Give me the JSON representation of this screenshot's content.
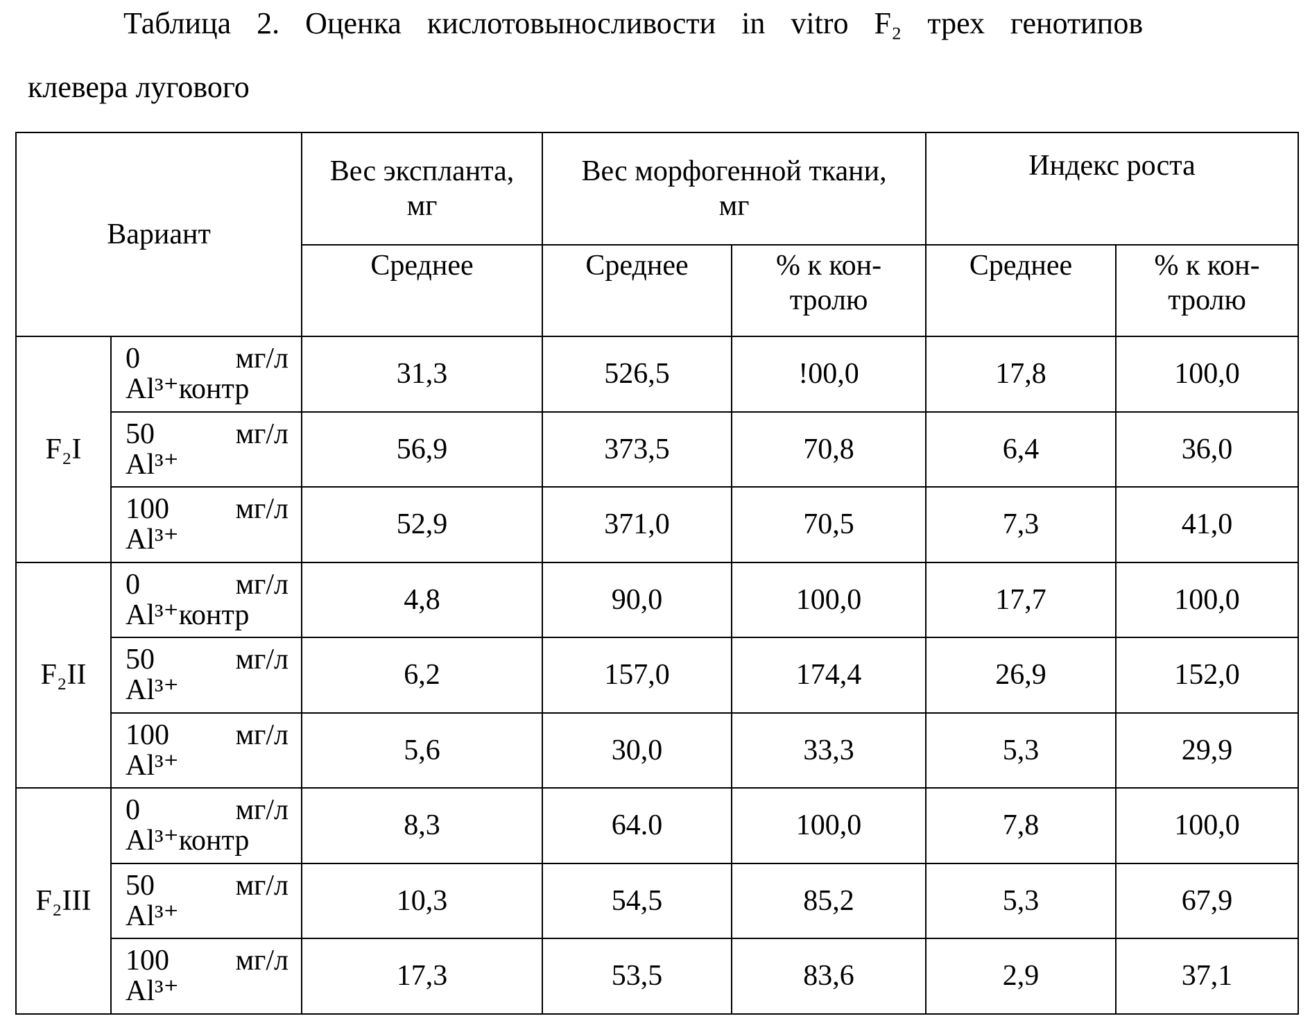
{
  "title": [
    "Таблица 2. Оценка кислотовыносливости in vitro F₂ трех генотипов",
    "клевера лугового"
  ],
  "table": {
    "header": {
      "variant": "Вариант",
      "groups": [
        [
          "Вес экспланта,",
          "мг"
        ],
        [
          "Вес морфогенной ткани,",
          "мг"
        ],
        [
          "Индекс роста"
        ]
      ],
      "sub": [
        [
          "Среднее"
        ],
        [
          "Среднее"
        ],
        [
          "% к кон-",
          "тролю"
        ],
        [
          "Среднее"
        ],
        [
          "% к кон-",
          "тролю"
        ]
      ]
    },
    "groups": [
      {
        "name": "F₂I",
        "rows": [
          {
            "dose": [
              "0 мг/л",
              "Al³⁺контр"
            ],
            "cells": [
              "31,3",
              "526,5",
              "!00,0",
              "17,8",
              "100,0"
            ]
          },
          {
            "dose": [
              "50 мг/л",
              "Al³⁺"
            ],
            "cells": [
              "56,9",
              "373,5",
              "70,8",
              "6,4",
              "36,0"
            ]
          },
          {
            "dose": [
              "100 мг/л",
              "Al³⁺"
            ],
            "cells": [
              "52,9",
              "371,0",
              "70,5",
              "7,3",
              "41,0"
            ]
          }
        ]
      },
      {
        "name": "F₂II",
        "rows": [
          {
            "dose": [
              "0 мг/л",
              "Al³⁺контр"
            ],
            "cells": [
              "4,8",
              "90,0",
              "100,0",
              "17,7",
              "100,0"
            ]
          },
          {
            "dose": [
              "50 мг/л",
              "Al³⁺"
            ],
            "cells": [
              "6,2",
              "157,0",
              "174,4",
              "26,9",
              "152,0"
            ]
          },
          {
            "dose": [
              "100 мг/л",
              "Al³⁺"
            ],
            "cells": [
              "5,6",
              "30,0",
              "33,3",
              "5,3",
              "29,9"
            ]
          }
        ]
      },
      {
        "name": "F₂III",
        "rows": [
          {
            "dose": [
              "0 мг/л",
              "Al³⁺контр"
            ],
            "cells": [
              "8,3",
              "64.0",
              "100,0",
              "7,8",
              "100,0"
            ]
          },
          {
            "dose": [
              "50 мг/л",
              "Al³⁺"
            ],
            "cells": [
              "10,3",
              "54,5",
              "85,2",
              "5,3",
              "67,9"
            ]
          },
          {
            "dose": [
              "100 мг/л",
              "Al³⁺"
            ],
            "cells": [
              "17,3",
              "53,5",
              "83,6",
              "2,9",
              "37,1"
            ]
          }
        ]
      }
    ]
  }
}
